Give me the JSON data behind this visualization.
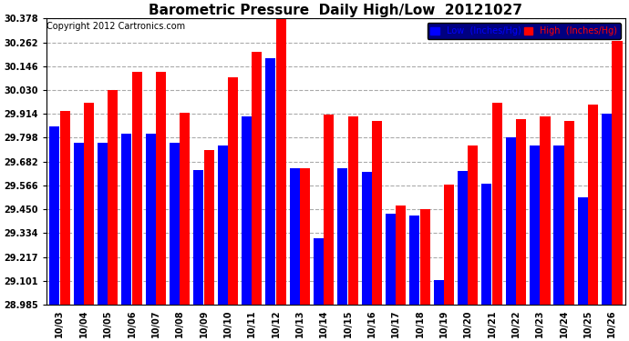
{
  "title": "Barometric Pressure  Daily High/Low  20121027",
  "copyright": "Copyright 2012 Cartronics.com",
  "dates": [
    "10/03",
    "10/04",
    "10/05",
    "10/06",
    "10/07",
    "10/08",
    "10/09",
    "10/10",
    "10/11",
    "10/12",
    "10/13",
    "10/14",
    "10/15",
    "10/16",
    "10/17",
    "10/18",
    "10/19",
    "10/20",
    "10/21",
    "10/22",
    "10/23",
    "10/24",
    "10/25",
    "10/26"
  ],
  "low_values": [
    29.855,
    29.775,
    29.775,
    29.82,
    29.82,
    29.775,
    29.64,
    29.76,
    29.9,
    30.185,
    29.65,
    29.31,
    29.65,
    29.63,
    29.43,
    29.42,
    29.105,
    29.635,
    29.575,
    29.8,
    29.76,
    29.76,
    29.51,
    29.915
  ],
  "high_values": [
    29.93,
    29.97,
    30.03,
    30.12,
    30.12,
    29.92,
    29.74,
    30.09,
    30.215,
    30.375,
    29.65,
    29.91,
    29.9,
    29.88,
    29.47,
    29.45,
    29.57,
    29.76,
    29.97,
    29.89,
    29.9,
    29.88,
    29.96,
    30.27
  ],
  "low_color": "#0000ff",
  "high_color": "#ff0000",
  "bg_color": "#ffffff",
  "grid_color": "#aaaaaa",
  "ylim_min": 28.985,
  "ylim_max": 30.378,
  "yticks": [
    28.985,
    29.101,
    29.217,
    29.334,
    29.45,
    29.566,
    29.682,
    29.798,
    29.914,
    30.03,
    30.146,
    30.262,
    30.378
  ],
  "legend_low_label": "Low  (Inches/Hg)",
  "legend_high_label": "High  (Inches/Hg)",
  "title_fontsize": 11,
  "copyright_fontsize": 7,
  "tick_fontsize": 7,
  "bar_width": 0.42,
  "bar_gap": 0.01
}
